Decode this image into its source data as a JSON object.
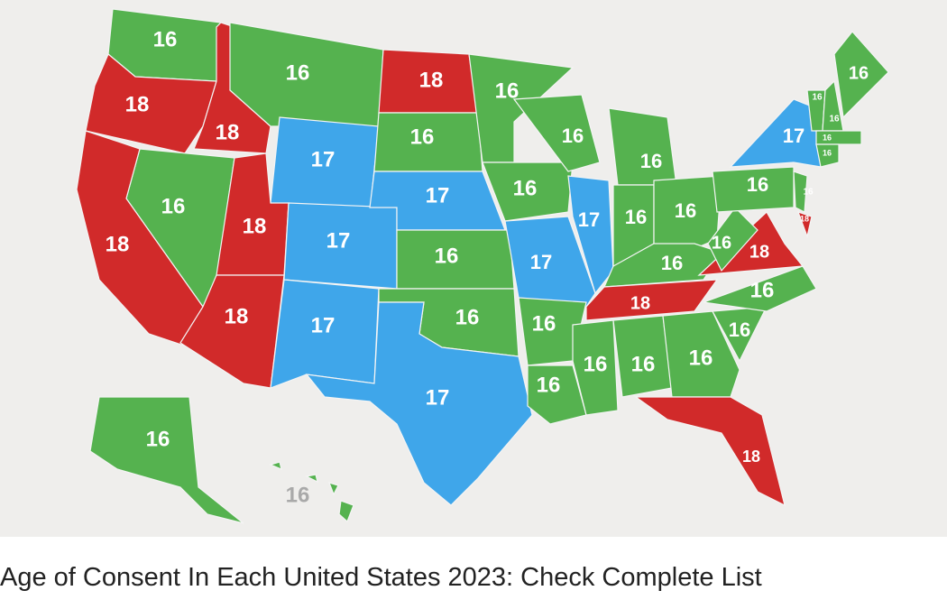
{
  "map": {
    "colors": {
      "16": "#55b24f",
      "17": "#3fa6ea",
      "18": "#d12a2a"
    },
    "regions": [
      {
        "value": 16
      },
      {
        "value": 18
      },
      {
        "value": 18
      },
      {
        "value": 16
      },
      {
        "value": 17
      },
      {
        "value": 16
      },
      {
        "value": 18
      },
      {
        "value": 18
      },
      {
        "value": 18
      },
      {
        "value": 17
      },
      {
        "value": 17
      },
      {
        "value": 18
      },
      {
        "value": 16
      },
      {
        "value": 17
      },
      {
        "value": 16
      },
      {
        "value": 16
      },
      {
        "value": 17
      },
      {
        "value": 16
      },
      {
        "value": 16
      },
      {
        "value": 17
      },
      {
        "value": 16
      },
      {
        "value": 16
      },
      {
        "value": 16
      },
      {
        "value": 17
      },
      {
        "value": 16
      },
      {
        "value": 16
      },
      {
        "value": 16
      },
      {
        "value": 16
      },
      {
        "value": 18
      },
      {
        "value": 16
      },
      {
        "value": 16
      },
      {
        "value": 16
      },
      {
        "value": 18
      },
      {
        "value": 16
      },
      {
        "value": 16
      },
      {
        "value": 18
      },
      {
        "value": 16
      },
      {
        "value": 16
      },
      {
        "value": 17
      },
      {
        "value": 16
      },
      {
        "value": 18
      },
      {
        "value": 16
      },
      {
        "value": 16
      },
      {
        "value": 16
      },
      {
        "value": 16
      },
      {
        "value": 16
      },
      {
        "value": 16
      },
      {
        "value": 16
      }
    ]
  },
  "caption": "Age of Consent In Each United States 2023: Check Complete List"
}
